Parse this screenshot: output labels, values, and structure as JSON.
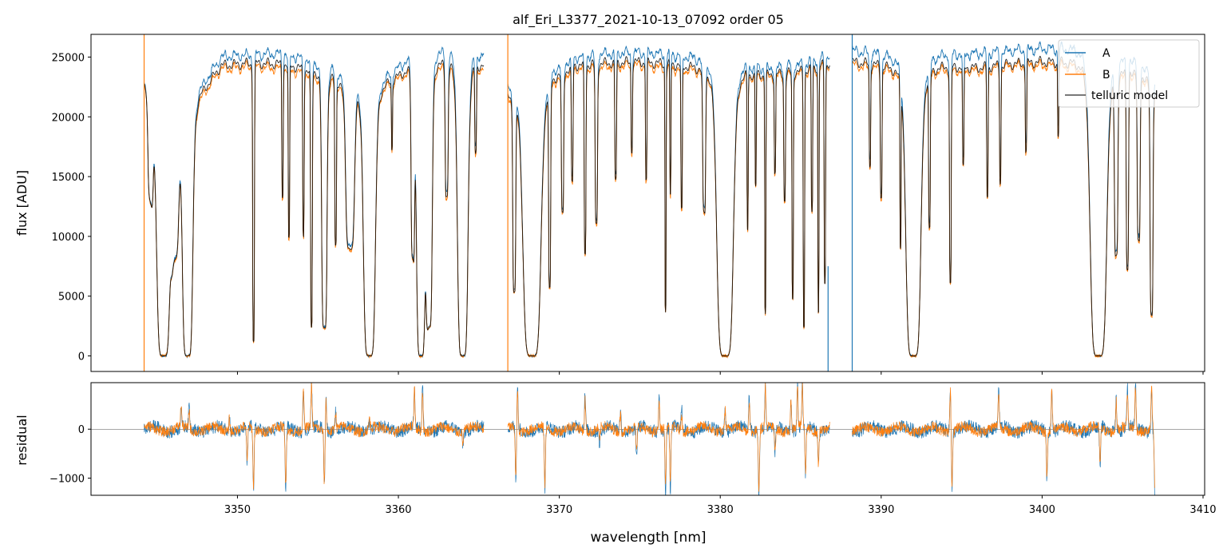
{
  "figure": {
    "title": "alf_Eri_L3377_2021-10-13_07092  order 05"
  },
  "chart_data": [
    {
      "type": "line",
      "panel": "top",
      "ylabel": "flux [ADU]",
      "xlim": [
        3340.9,
        3410.1
      ],
      "ylim": [
        -1300,
        26900
      ],
      "yticks": [
        0,
        5000,
        10000,
        15000,
        20000,
        25000
      ],
      "xticks": [
        3350,
        3360,
        3370,
        3380,
        3390,
        3400,
        3410
      ],
      "xticklabels_shown": false,
      "legend": {
        "placement": "top-right",
        "entries": [
          "A",
          "B",
          "telluric model"
        ]
      },
      "colors": {
        "A": "#1f77b4",
        "B": "#ff7f0e",
        "telluric model": "#000000"
      },
      "segments": [
        [
          3344.2,
          3365.3
        ],
        [
          3366.8,
          3386.8
        ],
        [
          3388.2,
          3407.0
        ]
      ],
      "continuum": {
        "x": [
          3344.2,
          3346.0,
          3347.5,
          3349.0,
          3351.0,
          3353.0,
          3355.0,
          3357.0,
          3359.0,
          3361.0,
          3363.0,
          3365.3,
          3366.8,
          3369.0,
          3371.0,
          3373.0,
          3375.0,
          3377.0,
          3379.0,
          3381.0,
          3383.0,
          3385.0,
          3386.8,
          3388.2,
          3390.0,
          3392.0,
          3394.0,
          3396.0,
          3398.0,
          3400.0,
          3402.0,
          3404.0,
          3406.0,
          3407.0
        ],
        "A": [
          23000,
          19500,
          22000,
          25000,
          25200,
          25300,
          24500,
          23300,
          23000,
          25200,
          25400,
          25200,
          22500,
          23500,
          25000,
          25300,
          25400,
          25200,
          24800,
          24300,
          24000,
          24400,
          25200,
          25500,
          25200,
          24300,
          25200,
          25300,
          25500,
          25700,
          25600,
          25300,
          24800,
          23000
        ],
        "B": [
          22800,
          19000,
          21200,
          24000,
          24200,
          24000,
          23300,
          22300,
          22300,
          24000,
          24000,
          24000,
          21500,
          22500,
          24000,
          24200,
          24300,
          24000,
          23800,
          23400,
          23300,
          23600,
          24300,
          24300,
          24000,
          23300,
          23900,
          23800,
          24200,
          24300,
          24200,
          23900,
          23500,
          22000
        ],
        "model": [
          22900,
          19200,
          21500,
          24300,
          24500,
          24400,
          23700,
          22600,
          22500,
          24300,
          24400,
          24300,
          21800,
          22800,
          24300,
          24500,
          24600,
          24400,
          24000,
          23600,
          23500,
          23800,
          24500,
          24600,
          24300,
          23500,
          24200,
          24100,
          24400,
          24600,
          24500,
          24200,
          23800,
          22300
        ]
      },
      "absorption_bands": [
        [
          3344.6,
          0.18,
          0.4
        ],
        [
          3345.4,
          0.45,
          1.0
        ],
        [
          3346.1,
          0.28,
          0.55
        ],
        [
          3346.9,
          0.35,
          1.0
        ],
        [
          3351.0,
          0.06,
          0.95
        ],
        [
          3352.8,
          0.05,
          0.45
        ],
        [
          3353.2,
          0.05,
          0.6
        ],
        [
          3354.1,
          0.05,
          0.58
        ],
        [
          3354.6,
          0.06,
          0.9
        ],
        [
          3355.4,
          0.18,
          0.9
        ],
        [
          3356.1,
          0.06,
          0.6
        ],
        [
          3357.0,
          0.3,
          0.6
        ],
        [
          3358.2,
          0.4,
          1.0
        ],
        [
          3359.6,
          0.04,
          0.25
        ],
        [
          3360.9,
          0.12,
          0.65
        ],
        [
          3361.4,
          0.3,
          1.0
        ],
        [
          3361.9,
          0.22,
          0.9
        ],
        [
          3363.0,
          0.1,
          0.45
        ],
        [
          3364.0,
          0.35,
          1.0
        ],
        [
          3364.8,
          0.06,
          0.3
        ],
        [
          3367.2,
          0.1,
          0.75
        ],
        [
          3368.3,
          0.6,
          1.0
        ],
        [
          3369.4,
          0.07,
          0.75
        ],
        [
          3370.2,
          0.08,
          0.5
        ],
        [
          3370.8,
          0.06,
          0.4
        ],
        [
          3371.6,
          0.06,
          0.65
        ],
        [
          3372.3,
          0.08,
          0.55
        ],
        [
          3373.5,
          0.06,
          0.4
        ],
        [
          3374.5,
          0.05,
          0.3
        ],
        [
          3375.4,
          0.05,
          0.4
        ],
        [
          3376.6,
          0.04,
          0.85
        ],
        [
          3376.9,
          0.04,
          0.45
        ],
        [
          3377.6,
          0.05,
          0.5
        ],
        [
          3379.0,
          0.1,
          0.5
        ],
        [
          3380.3,
          0.55,
          1.0
        ],
        [
          3381.7,
          0.04,
          0.55
        ],
        [
          3382.2,
          0.04,
          0.4
        ],
        [
          3382.8,
          0.04,
          0.85
        ],
        [
          3383.4,
          0.05,
          0.35
        ],
        [
          3384.0,
          0.06,
          0.45
        ],
        [
          3384.5,
          0.05,
          0.8
        ],
        [
          3385.2,
          0.05,
          0.9
        ],
        [
          3385.7,
          0.05,
          0.5
        ],
        [
          3386.1,
          0.04,
          0.85
        ],
        [
          3386.5,
          0.05,
          0.75
        ],
        [
          3389.3,
          0.05,
          0.35
        ],
        [
          3390.0,
          0.06,
          0.45
        ],
        [
          3391.2,
          0.04,
          0.6
        ],
        [
          3392.0,
          0.5,
          1.0
        ],
        [
          3393.0,
          0.06,
          0.55
        ],
        [
          3394.3,
          0.06,
          0.75
        ],
        [
          3395.1,
          0.05,
          0.35
        ],
        [
          3396.6,
          0.05,
          0.45
        ],
        [
          3397.4,
          0.05,
          0.4
        ],
        [
          3399.0,
          0.05,
          0.3
        ],
        [
          3401.0,
          0.04,
          0.25
        ],
        [
          3403.5,
          0.55,
          1.0
        ],
        [
          3404.6,
          0.12,
          0.65
        ],
        [
          3405.3,
          0.08,
          0.7
        ],
        [
          3406.0,
          0.1,
          0.6
        ],
        [
          3406.8,
          0.1,
          0.85
        ]
      ],
      "spikes": [
        {
          "x": 3344.2,
          "series": "B",
          "y": [
            -1300,
            26900
          ]
        },
        {
          "x": 3366.8,
          "series": "B",
          "y": [
            -1300,
            26900
          ]
        },
        {
          "x": 3388.2,
          "series": "A",
          "y": [
            -1300,
            26900
          ]
        },
        {
          "x": 3386.7,
          "series": "A",
          "y": [
            -1300,
            7500
          ]
        }
      ]
    },
    {
      "type": "line",
      "panel": "bottom",
      "ylabel": "residual",
      "xlabel": "wavelength [nm]",
      "xlim": [
        3340.9,
        3410.1
      ],
      "ylim": [
        -1350,
        950
      ],
      "yticks": [
        -1000,
        0
      ],
      "xticks": [
        3350,
        3360,
        3370,
        3380,
        3390,
        3400,
        3410
      ],
      "zero_line": true,
      "noise_level": 120,
      "features": [
        [
          3346.5,
          500
        ],
        [
          3347.0,
          450
        ],
        [
          3349.5,
          300
        ],
        [
          3350.6,
          -800
        ],
        [
          3351.0,
          -1300
        ],
        [
          3353.0,
          -1300
        ],
        [
          3354.1,
          900
        ],
        [
          3354.6,
          900
        ],
        [
          3355.4,
          -1200
        ],
        [
          3355.5,
          700
        ],
        [
          3356.1,
          400
        ],
        [
          3358.2,
          250
        ],
        [
          3361.0,
          900
        ],
        [
          3361.5,
          900
        ],
        [
          3364.0,
          -300
        ],
        [
          3367.3,
          -1100
        ],
        [
          3367.4,
          900
        ],
        [
          3369.1,
          -1300
        ],
        [
          3371.6,
          700
        ],
        [
          3372.5,
          -300
        ],
        [
          3373.8,
          400
        ],
        [
          3374.8,
          -600
        ],
        [
          3376.2,
          700
        ],
        [
          3376.6,
          -1300
        ],
        [
          3376.9,
          -1300
        ],
        [
          3377.6,
          400
        ],
        [
          3380.3,
          450
        ],
        [
          3381.8,
          700
        ],
        [
          3382.4,
          -1300
        ],
        [
          3382.8,
          900
        ],
        [
          3383.4,
          -500
        ],
        [
          3384.4,
          600
        ],
        [
          3384.8,
          900
        ],
        [
          3385.1,
          900
        ],
        [
          3385.3,
          -1000
        ],
        [
          3386.1,
          -700
        ],
        [
          3394.3,
          900
        ],
        [
          3394.4,
          -1200
        ],
        [
          3397.3,
          800
        ],
        [
          3400.3,
          -1000
        ],
        [
          3400.6,
          900
        ],
        [
          3403.6,
          -800
        ],
        [
          3404.6,
          650
        ],
        [
          3405.3,
          800
        ],
        [
          3405.8,
          900
        ],
        [
          3406.8,
          900
        ],
        [
          3407.0,
          -1300
        ]
      ]
    }
  ]
}
